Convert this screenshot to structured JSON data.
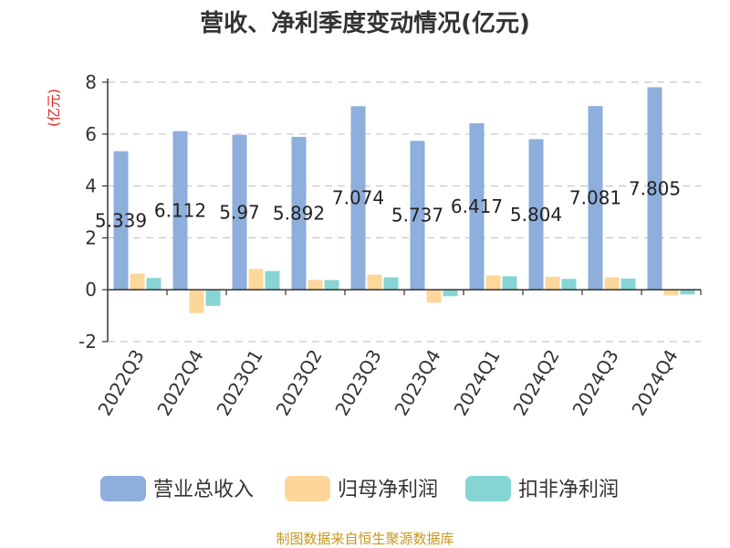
{
  "chart_data": {
    "type": "bar",
    "title": "营收、净利季度变动情况(亿元)",
    "unit_label": "(亿元)",
    "categories": [
      "2022Q3",
      "2022Q4",
      "2023Q1",
      "2023Q2",
      "2023Q3",
      "2023Q4",
      "2024Q1",
      "2024Q2",
      "2024Q3",
      "2024Q4"
    ],
    "series": [
      {
        "name": "营业总收入",
        "color": "#8eaedb",
        "values": [
          5.339,
          6.112,
          5.97,
          5.892,
          7.074,
          5.737,
          6.417,
          5.804,
          7.081,
          7.805
        ],
        "labels": [
          "5.339",
          "6.112",
          "5.97",
          "5.892",
          "7.074",
          "5.737",
          "6.417",
          "5.804",
          "7.081",
          "7.805"
        ]
      },
      {
        "name": "归母净利润",
        "color": "#fdd699",
        "values": [
          0.62,
          -0.9,
          0.8,
          0.38,
          0.58,
          -0.5,
          0.55,
          0.5,
          0.48,
          -0.22
        ]
      },
      {
        "name": "扣非净利润",
        "color": "#86d4d4",
        "values": [
          0.45,
          -0.62,
          0.72,
          0.37,
          0.48,
          -0.25,
          0.52,
          0.42,
          0.43,
          -0.18
        ]
      }
    ],
    "ylim": [
      -2,
      8
    ],
    "yticks": [
      "-2",
      "0",
      "2",
      "4",
      "6",
      "8"
    ],
    "grid": true,
    "legend_position": "bottom",
    "source": "制图数据来自恒生聚源数据库"
  }
}
